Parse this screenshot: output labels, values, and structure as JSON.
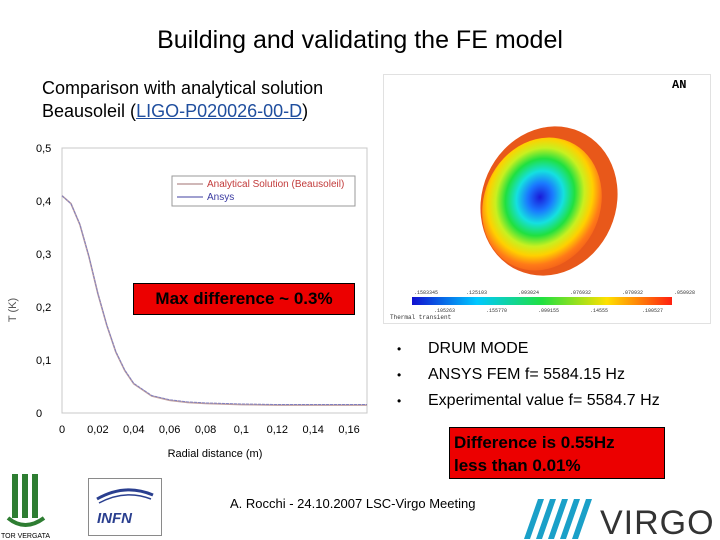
{
  "title": "Building and validating the FE model",
  "subtitle": {
    "line1": "Comparison with analytical solution",
    "line2_prefix": "Beausoleil (",
    "line2_ref": "LIGO-P020026-00-D",
    "line2_suffix": ")"
  },
  "max_difference": "Max difference ~ 0.3%",
  "bullets": [
    "DRUM MODE",
    "ANSYS FEM f= 5584.15 Hz",
    "Experimental value f= 5584.7 Hz"
  ],
  "difference_box": {
    "line1": "Difference is 0.55Hz",
    "line2": "less than 0.01%"
  },
  "footer": "A. Rocchi - 24.10.2007 LSC-Virgo Meeting",
  "fe_panel": {
    "corner_logo": "AN",
    "label": "Thermal transient",
    "colorbar_values": [
      ".1583345",
      ".125103",
      ".093024",
      ".076932",
      ".070932",
      ".050928"
    ],
    "colorbar_values_low": [
      ".105263",
      ".155770",
      ".099155",
      ".14555",
      ".100527"
    ]
  },
  "logos": {
    "infn_name": "INFN",
    "virgo_name": "VIRGO",
    "tv_caption": "TOR VERGATA"
  },
  "chart_data": {
    "type": "line",
    "title": "",
    "xlabel": "Radial distance (m)",
    "ylabel": "T (K)",
    "xlim": [
      0,
      0.17
    ],
    "ylim": [
      0,
      0.5
    ],
    "x_ticks": [
      "0",
      "0,02",
      "0,04",
      "0,06",
      "0,08",
      "0,1",
      "0,12",
      "0,14",
      "0,16"
    ],
    "x_tick_values": [
      0,
      0.02,
      0.04,
      0.06,
      0.08,
      0.1,
      0.12,
      0.14,
      0.16
    ],
    "y_ticks": [
      "0",
      "0,1",
      "0,2",
      "0,3",
      "0,4",
      "0,5"
    ],
    "y_tick_values": [
      0,
      0.1,
      0.2,
      0.3,
      0.4,
      0.5
    ],
    "legend_position": "top-right",
    "series": [
      {
        "name": "Analytical Solution (Beausoleil)",
        "color": "#c0a0a0",
        "x": [
          0,
          0.005,
          0.01,
          0.015,
          0.02,
          0.025,
          0.03,
          0.035,
          0.04,
          0.05,
          0.06,
          0.07,
          0.08,
          0.1,
          0.12,
          0.14,
          0.16,
          0.17
        ],
        "y": [
          0.41,
          0.395,
          0.355,
          0.295,
          0.225,
          0.165,
          0.115,
          0.08,
          0.055,
          0.032,
          0.024,
          0.02,
          0.018,
          0.016,
          0.015,
          0.015,
          0.015,
          0.015
        ]
      },
      {
        "name": "Ansys",
        "color": "#8080c0",
        "x": [
          0,
          0.005,
          0.01,
          0.015,
          0.02,
          0.025,
          0.03,
          0.035,
          0.04,
          0.05,
          0.06,
          0.07,
          0.08,
          0.1,
          0.12,
          0.14,
          0.16,
          0.17
        ],
        "y": [
          0.41,
          0.395,
          0.356,
          0.296,
          0.226,
          0.166,
          0.116,
          0.081,
          0.056,
          0.033,
          0.025,
          0.021,
          0.019,
          0.017,
          0.016,
          0.016,
          0.016,
          0.016
        ]
      }
    ]
  }
}
